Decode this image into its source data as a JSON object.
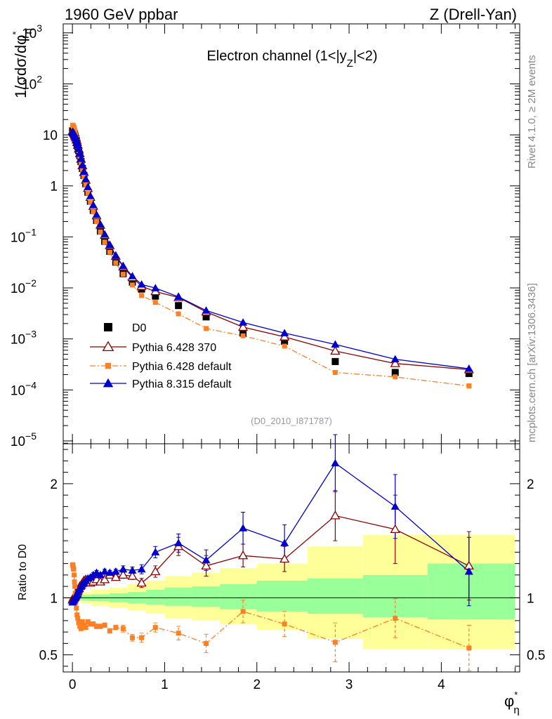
{
  "header": {
    "left_title": "1960 GeV ppbar",
    "right_title": "Z (Drell-Yan)",
    "subtitle_main": "Electron channel (1<|y",
    "subtitle_sub": "Z",
    "subtitle_end": "|<2)",
    "analysis_id": "(D0_2010_I871787)",
    "side_label_top": "Rivet 4.1.0, ≥ 2M events",
    "side_label_bottom": "mcplots.cern.ch [arXiv:1306.3436]"
  },
  "colors": {
    "data": "#000000",
    "pythia6_370": "#8b0000",
    "pythia6_default": "#ff7f24",
    "pythia8": "#0000cd",
    "band_inner": "#99ff99",
    "band_outer": "#ffff99"
  },
  "chart_data": [
    {
      "type": "line",
      "panel": "main",
      "ylabel": "1/σdσ/dφ*η",
      "ylabel_main": "1/σdσ/dφ",
      "ylabel_sup": "*",
      "ylabel_sub": "η",
      "yscale": "log",
      "xlim": [
        -0.1,
        4.85
      ],
      "ylim": [
        8.8e-06,
        1500
      ],
      "ytick_labels": [
        {
          "base": "10",
          "exp": "3",
          "value": 1000
        },
        {
          "base": "10",
          "exp": "2",
          "value": 100
        },
        {
          "base": "10",
          "exp": "",
          "value": 10
        },
        {
          "base": "1",
          "exp": "",
          "value": 1
        },
        {
          "base": "10",
          "exp": "−1",
          "value": 0.1
        },
        {
          "base": "10",
          "exp": "−2",
          "value": 0.01
        },
        {
          "base": "10",
          "exp": "−3",
          "value": 0.001
        },
        {
          "base": "10",
          "exp": "−4",
          "value": 0.0001
        },
        {
          "base": "10",
          "exp": "−5",
          "value": 1e-05
        }
      ],
      "x": [
        0.002,
        0.006,
        0.01,
        0.014,
        0.018,
        0.022,
        0.026,
        0.03,
        0.036,
        0.043,
        0.05,
        0.058,
        0.068,
        0.08,
        0.093,
        0.108,
        0.125,
        0.145,
        0.168,
        0.195,
        0.226,
        0.262,
        0.303,
        0.35,
        0.405,
        0.47,
        0.55,
        0.65,
        0.75,
        0.9,
        1.15,
        1.45,
        1.85,
        2.3,
        2.85,
        3.5,
        4.3
      ],
      "series": [
        {
          "name": "D0",
          "marker": "square-filled",
          "values": [
            12,
            11.8,
            11.5,
            11.2,
            10.8,
            10.3,
            9.8,
            9.2,
            8.5,
            7.7,
            6.8,
            5.9,
            4.9,
            3.9,
            3.0,
            2.2,
            1.6,
            1.1,
            0.75,
            0.5,
            0.33,
            0.21,
            0.13,
            0.082,
            0.052,
            0.032,
            0.019,
            0.013,
            0.0095,
            0.0069,
            0.0045,
            0.0027,
            0.0013,
            0.0009,
            0.00036,
            0.00022,
            0.00021
          ]
        },
        {
          "name": "Pythia 6.428 370",
          "marker": "triangle-open",
          "values": [
            11.8,
            11.6,
            11.4,
            11.1,
            10.8,
            10.4,
            9.9,
            9.4,
            8.8,
            8.0,
            7.1,
            6.3,
            5.3,
            4.3,
            3.35,
            2.5,
            1.85,
            1.3,
            0.9,
            0.6,
            0.4,
            0.26,
            0.17,
            0.108,
            0.068,
            0.042,
            0.026,
            0.016,
            0.0108,
            0.0085,
            0.0065,
            0.0034,
            0.0017,
            0.0011,
            0.00058,
            0.00033,
            0.00025
          ]
        },
        {
          "name": "Pythia 6.428 default",
          "marker": "square-small",
          "values": [
            15.5,
            15.2,
            14.8,
            14.3,
            13.6,
            12.8,
            12.0,
            11.0,
            9.9,
            8.6,
            7.3,
            6.1,
            4.9,
            3.8,
            2.85,
            2.1,
            1.5,
            1.05,
            0.72,
            0.48,
            0.31,
            0.2,
            0.125,
            0.079,
            0.05,
            0.031,
            0.0185,
            0.0114,
            0.0071,
            0.0052,
            0.0031,
            0.0016,
            0.00115,
            0.00072,
            0.00022,
            0.00018,
            0.00012
          ]
        },
        {
          "name": "Pythia 8.315 default",
          "marker": "triangle-filled",
          "values": [
            11.5,
            11.3,
            11.1,
            10.9,
            10.6,
            10.2,
            9.8,
            9.3,
            8.7,
            7.9,
            7.1,
            6.3,
            5.3,
            4.3,
            3.4,
            2.55,
            1.9,
            1.35,
            0.95,
            0.63,
            0.42,
            0.27,
            0.175,
            0.112,
            0.07,
            0.043,
            0.027,
            0.017,
            0.0117,
            0.0099,
            0.0067,
            0.0036,
            0.0021,
            0.0013,
            0.00078,
            0.0004,
            0.00026
          ]
        }
      ],
      "legend": [
        "D0",
        "Pythia 6.428 370",
        "Pythia 6.428 default",
        "Pythia 8.315 default"
      ]
    },
    {
      "type": "line",
      "panel": "ratio",
      "ylabel": "Ratio to D0",
      "xlabel": "φ*η",
      "xlabel_main": "φ",
      "xlabel_sup": "*",
      "xlabel_sub": "η",
      "yscale": "linear",
      "xlim": [
        -0.1,
        4.85
      ],
      "ylim": [
        0.35,
        2.35
      ],
      "xtick_labels": [
        "0",
        "1",
        "2",
        "3",
        "4"
      ],
      "ytick_labels": [
        "0.5",
        "1",
        "2"
      ],
      "bands": {
        "edges": [
          0.0,
          0.05,
          0.1,
          0.2,
          0.4,
          0.6,
          0.8,
          1.0,
          1.3,
          1.6,
          2.0,
          2.55,
          3.15,
          3.85,
          4.8
        ],
        "inner_low": [
          0.985,
          0.98,
          0.975,
          0.97,
          0.96,
          0.95,
          0.94,
          0.93,
          0.92,
          0.9,
          0.88,
          0.86,
          0.83,
          0.81
        ],
        "inner_high": [
          1.015,
          1.02,
          1.025,
          1.03,
          1.04,
          1.05,
          1.07,
          1.09,
          1.1,
          1.12,
          1.15,
          1.17,
          1.2,
          1.3
        ],
        "outer_low": [
          0.97,
          0.96,
          0.95,
          0.93,
          0.91,
          0.89,
          0.86,
          0.82,
          0.8,
          0.77,
          0.72,
          0.64,
          0.55,
          0.55
        ],
        "outer_high": [
          1.03,
          1.04,
          1.05,
          1.07,
          1.09,
          1.12,
          1.15,
          1.19,
          1.22,
          1.26,
          1.3,
          1.45,
          1.55,
          1.55
        ]
      },
      "x": [
        0.002,
        0.006,
        0.01,
        0.014,
        0.018,
        0.022,
        0.026,
        0.03,
        0.036,
        0.043,
        0.05,
        0.058,
        0.068,
        0.08,
        0.093,
        0.108,
        0.125,
        0.145,
        0.168,
        0.195,
        0.226,
        0.262,
        0.303,
        0.35,
        0.405,
        0.47,
        0.55,
        0.65,
        0.75,
        0.9,
        1.15,
        1.45,
        1.85,
        2.3,
        2.85,
        3.5,
        4.3
      ],
      "series": [
        {
          "name": "Pythia 6.428 370",
          "marker": "triangle-open",
          "values": [
            0.98,
            0.99,
            1.0,
            1.0,
            1.0,
            1.01,
            1.01,
            1.02,
            1.03,
            1.04,
            1.04,
            1.06,
            1.08,
            1.1,
            1.11,
            1.13,
            1.15,
            1.16,
            1.14,
            1.13,
            1.14,
            1.16,
            1.14,
            1.16,
            1.2,
            1.18,
            1.2,
            1.19,
            1.13,
            1.23,
            1.45,
            1.28,
            1.37,
            1.34,
            1.72,
            1.6,
            1.28
          ],
          "errors": [
            0.01,
            0.01,
            0.01,
            0.01,
            0.01,
            0.01,
            0.01,
            0.01,
            0.01,
            0.01,
            0.01,
            0.01,
            0.01,
            0.01,
            0.01,
            0.01,
            0.01,
            0.01,
            0.01,
            0.01,
            0.01,
            0.02,
            0.02,
            0.02,
            0.02,
            0.02,
            0.03,
            0.03,
            0.04,
            0.05,
            0.08,
            0.09,
            0.1,
            0.11,
            0.22,
            0.3,
            0.3
          ]
        },
        {
          "name": "Pythia 6.428 default",
          "marker": "square-small",
          "values": [
            1.29,
            1.28,
            1.26,
            1.25,
            1.2,
            1.14,
            1.1,
            1.04,
            0.96,
            0.91,
            0.85,
            0.82,
            0.78,
            0.75,
            0.73,
            0.79,
            0.76,
            0.74,
            0.79,
            0.77,
            0.77,
            0.75,
            0.75,
            0.76,
            0.71,
            0.74,
            0.73,
            0.65,
            0.65,
            0.74,
            0.69,
            0.6,
            0.88,
            0.77,
            0.61,
            0.82,
            0.56
          ],
          "errors": [
            0.01,
            0.01,
            0.01,
            0.01,
            0.01,
            0.01,
            0.01,
            0.01,
            0.01,
            0.01,
            0.01,
            0.01,
            0.01,
            0.01,
            0.01,
            0.01,
            0.01,
            0.01,
            0.01,
            0.01,
            0.02,
            0.02,
            0.02,
            0.02,
            0.02,
            0.02,
            0.03,
            0.03,
            0.04,
            0.04,
            0.06,
            0.08,
            0.1,
            0.11,
            0.17,
            0.17,
            0.2
          ]
        },
        {
          "name": "Pythia 8.315 default",
          "marker": "triangle-filled",
          "values": [
            0.96,
            0.97,
            0.98,
            0.98,
            0.99,
            0.99,
            1.0,
            1.0,
            1.01,
            1.02,
            1.03,
            1.05,
            1.07,
            1.08,
            1.1,
            1.12,
            1.13,
            1.15,
            1.17,
            1.18,
            1.2,
            1.22,
            1.2,
            1.23,
            1.22,
            1.23,
            1.25,
            1.24,
            1.25,
            1.4,
            1.48,
            1.33,
            1.61,
            1.48,
            2.18,
            1.8,
            1.23
          ],
          "errors": [
            0.01,
            0.01,
            0.01,
            0.01,
            0.01,
            0.01,
            0.01,
            0.01,
            0.01,
            0.01,
            0.01,
            0.01,
            0.01,
            0.01,
            0.01,
            0.01,
            0.01,
            0.01,
            0.01,
            0.01,
            0.02,
            0.02,
            0.02,
            0.02,
            0.02,
            0.02,
            0.03,
            0.03,
            0.04,
            0.05,
            0.08,
            0.09,
            0.14,
            0.16,
            0.25,
            0.28,
            0.3
          ]
        }
      ]
    }
  ]
}
